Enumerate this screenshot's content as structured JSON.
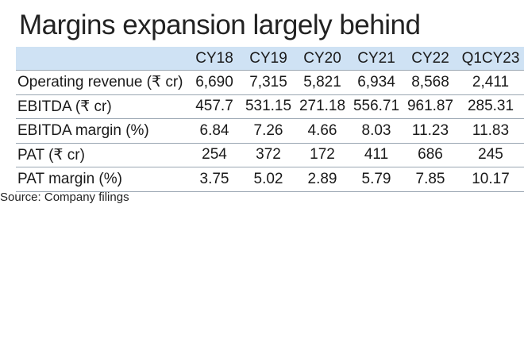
{
  "title": "Margins expansion largely behind",
  "columns": [
    "CY18",
    "CY19",
    "CY20",
    "CY21",
    "CY22",
    "Q1CY23"
  ],
  "rows": [
    {
      "label": "Operating revenue (₹ cr)",
      "values": [
        "6,690",
        "7,315",
        "5,821",
        "6,934",
        "8,568",
        "2,411"
      ]
    },
    {
      "label": "EBITDA (₹ cr)",
      "values": [
        "457.7",
        "531.15",
        "271.18",
        "556.71",
        "961.87",
        "285.31"
      ]
    },
    {
      "label": "EBITDA margin (%)",
      "values": [
        "6.84",
        "7.26",
        "4.66",
        "8.03",
        "11.23",
        "11.83"
      ]
    },
    {
      "label": "PAT (₹ cr)",
      "values": [
        "254",
        "372",
        "172",
        "411",
        "686",
        "245"
      ]
    },
    {
      "label": "PAT margin (%)",
      "values": [
        "3.75",
        "5.02",
        "2.89",
        "5.79",
        "7.85",
        "10.17"
      ]
    }
  ],
  "source": "Source: Company filings",
  "colors": {
    "header_bg": "#cfe2f4",
    "rule": "#9aa6b2"
  }
}
